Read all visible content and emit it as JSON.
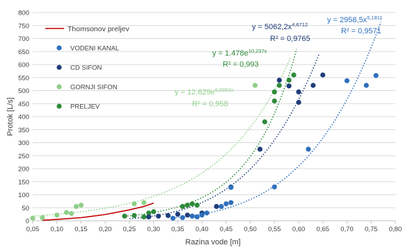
{
  "chart_data": {
    "type": "scatter",
    "title": "",
    "xlabel": "Razina vode [m]",
    "ylabel": "Protok [L/s]",
    "xlim": [
      0.05,
      0.8
    ],
    "ylim": [
      0,
      800
    ],
    "x_ticks": [
      "0,05",
      "0,10",
      "0,15",
      "0,20",
      "0,25",
      "0,30",
      "0,35",
      "0,40",
      "0,45",
      "0,50",
      "0,55",
      "0,60",
      "0,65",
      "0,70",
      "0,75",
      "0,80"
    ],
    "y_ticks": [
      "0",
      "50",
      "100",
      "150",
      "200",
      "250",
      "300",
      "350",
      "400",
      "450",
      "500",
      "550",
      "600",
      "650",
      "700",
      "750",
      "800"
    ],
    "grid": "horizontal",
    "legend_position": "top-left",
    "legend_line": {
      "name": "Thomsonov preljev",
      "color": "#c00000"
    },
    "series": [
      {
        "name": "VODENI KANAL",
        "color": "#2e6fbd",
        "points": [
          [
            0.34,
            10
          ],
          [
            0.36,
            12
          ],
          [
            0.38,
            18
          ],
          [
            0.39,
            15
          ],
          [
            0.4,
            22
          ],
          [
            0.41,
            30
          ],
          [
            0.44,
            55
          ],
          [
            0.45,
            65
          ],
          [
            0.46,
            70
          ],
          [
            0.46,
            128
          ],
          [
            0.55,
            130
          ],
          [
            0.62,
            275
          ],
          [
            0.7,
            538
          ],
          [
            0.74,
            520
          ],
          [
            0.76,
            558
          ]
        ],
        "trend": {
          "a": 2958.5,
          "b": 5.1811,
          "kind": "power",
          "x_from": 0.34,
          "x_to": 0.77
        },
        "equation": {
          "main": "y = 2958,5x",
          "sup": "5,1811"
        },
        "r2": "R² = 0,9571"
      },
      {
        "name": "CD SIFON",
        "color": "#1f3d7a",
        "points": [
          [
            0.29,
            15
          ],
          [
            0.31,
            18
          ],
          [
            0.33,
            20
          ],
          [
            0.35,
            25
          ],
          [
            0.37,
            22
          ],
          [
            0.38,
            18
          ],
          [
            0.4,
            30
          ],
          [
            0.43,
            55
          ],
          [
            0.46,
            130
          ],
          [
            0.52,
            275
          ],
          [
            0.56,
            540
          ],
          [
            0.58,
            518
          ],
          [
            0.6,
            455
          ],
          [
            0.6,
            495
          ],
          [
            0.63,
            520
          ],
          [
            0.65,
            560
          ]
        ],
        "trend": {
          "a": 5062.2,
          "b": 4.6712,
          "kind": "power",
          "x_from": 0.25,
          "x_to": 0.643
        },
        "equation": {
          "main": "y = 5062,2x",
          "sup": "4,6712"
        },
        "r2": "R² = 0,9765"
      },
      {
        "name": "GORNJI SIFON",
        "color": "#8fcf8a",
        "points": [
          [
            0.05,
            10
          ],
          [
            0.07,
            12
          ],
          [
            0.1,
            22
          ],
          [
            0.12,
            32
          ],
          [
            0.13,
            28
          ],
          [
            0.14,
            55
          ],
          [
            0.15,
            60
          ],
          [
            0.26,
            65
          ],
          [
            0.28,
            70
          ],
          [
            0.51,
            520
          ]
        ],
        "trend": {
          "a": 12.629,
          "b": 6.6952,
          "kind": "exp",
          "x_from": 0.05,
          "x_to": 0.583
        },
        "equation": {
          "main": "y = 12,629e",
          "sup": "6,6952x"
        },
        "r2": "R² = 0,958"
      },
      {
        "name": "PRELJEV",
        "color": "#2e8b3a",
        "points": [
          [
            0.24,
            18
          ],
          [
            0.26,
            20
          ],
          [
            0.28,
            15
          ],
          [
            0.29,
            30
          ],
          [
            0.3,
            35
          ],
          [
            0.36,
            55
          ],
          [
            0.37,
            60
          ],
          [
            0.38,
            65
          ],
          [
            0.39,
            60
          ],
          [
            0.53,
            380
          ],
          [
            0.55,
            460
          ],
          [
            0.55,
            495
          ],
          [
            0.56,
            520
          ],
          [
            0.58,
            540
          ],
          [
            0.59,
            560
          ]
        ],
        "trend": {
          "a": 1.478,
          "b": 10.237,
          "kind": "exp",
          "x_from": 0.24,
          "x_to": 0.596
        },
        "equation": {
          "main": "y = 1.478e",
          "sup": "10,237x"
        },
        "r2": "R² = 0,993"
      }
    ],
    "thomson_curve": [
      [
        0.07,
        2
      ],
      [
        0.1,
        5
      ],
      [
        0.15,
        12
      ],
      [
        0.2,
        24
      ],
      [
        0.25,
        42
      ],
      [
        0.28,
        55
      ],
      [
        0.3,
        68
      ]
    ]
  }
}
